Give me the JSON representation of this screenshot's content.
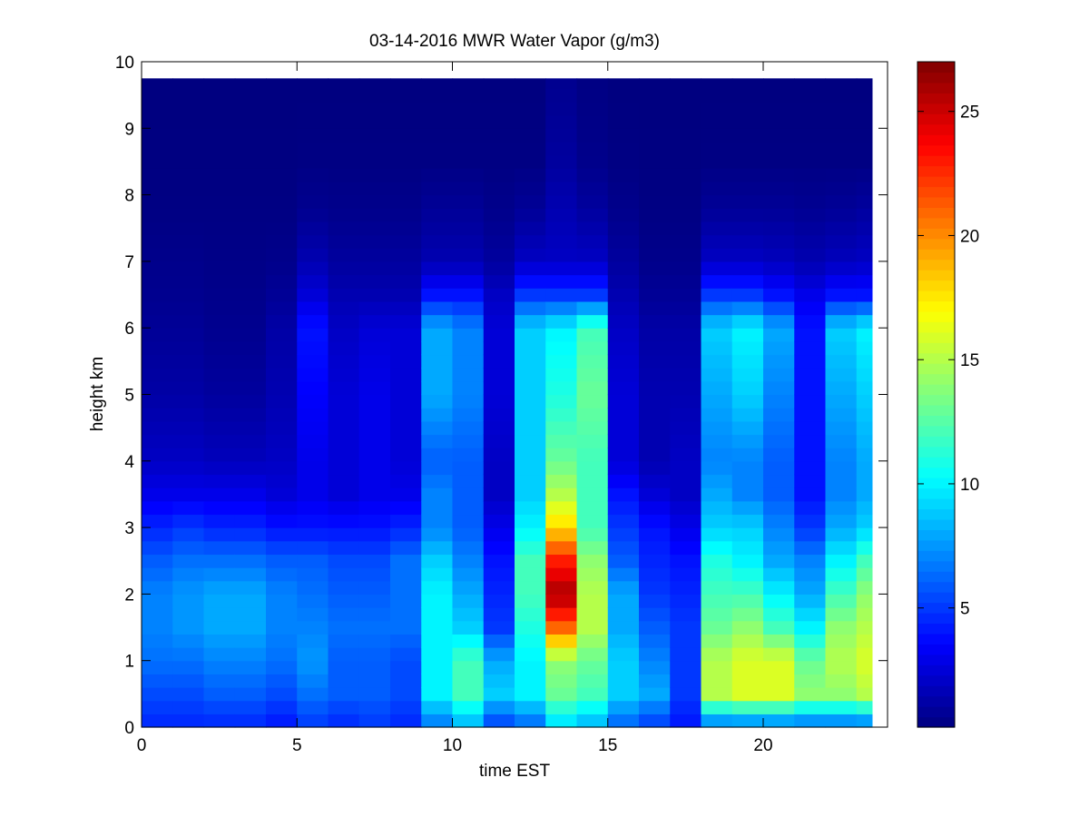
{
  "chart_data": {
    "type": "heatmap",
    "title": "03-14-2016 MWR Water Vapor (g/m3)",
    "xlabel": "time EST",
    "ylabel": "height km",
    "xlim": [
      0,
      24
    ],
    "ylim": [
      0,
      10
    ],
    "xticks": [
      0,
      5,
      10,
      15,
      20
    ],
    "yticks": [
      0,
      1,
      2,
      3,
      4,
      5,
      6,
      7,
      8,
      9,
      10
    ],
    "colormap": "jet",
    "clim": [
      0.2,
      27
    ],
    "colorbar_ticks": [
      5,
      10,
      15,
      20,
      25
    ],
    "grid": false,
    "time_columns": [
      0.5,
      1.5,
      2.5,
      3.5,
      4.5,
      5.5,
      6.5,
      7.5,
      8.5,
      9.5,
      10.5,
      11.5,
      12.5,
      13.5,
      14.5,
      15.5,
      16.5,
      17.5,
      18.5,
      19.5,
      20.5,
      21.5,
      22.5,
      23.5
    ],
    "height_profile_km": [
      0,
      0.5,
      1.0,
      1.5,
      2.0,
      2.5,
      3.0,
      3.5,
      4.0,
      5.0,
      6.0,
      6.5,
      7.0,
      7.8,
      8.5,
      9.75
    ],
    "values_g_m3": [
      [
        4.5,
        5.5,
        6.5,
        7,
        7,
        6,
        4.5,
        3,
        2,
        1.2,
        0.8,
        0.6,
        0.5,
        0.3,
        0.25,
        0.2
      ],
      [
        4.5,
        5.5,
        6.5,
        7.5,
        7.5,
        6.5,
        5,
        3,
        2,
        1.2,
        0.8,
        0.6,
        0.5,
        0.3,
        0.25,
        0.2
      ],
      [
        4.5,
        6,
        7,
        8,
        8,
        6.5,
        4.5,
        3,
        1.8,
        1,
        0.6,
        0.5,
        0.4,
        0.3,
        0.25,
        0.2
      ],
      [
        4.5,
        6,
        7,
        8,
        8,
        6.5,
        4.5,
        3,
        1.8,
        1,
        0.6,
        0.5,
        0.4,
        0.3,
        0.25,
        0.2
      ],
      [
        4,
        5.5,
        6.5,
        7,
        7,
        6,
        4,
        2.5,
        2,
        1.5,
        1.2,
        0.8,
        0.5,
        0.3,
        0.25,
        0.2
      ],
      [
        5,
        6.5,
        7.5,
        7,
        6.5,
        6,
        4,
        3,
        3,
        3.5,
        4,
        2.5,
        1.5,
        0.6,
        0.3,
        0.2
      ],
      [
        4.5,
        6,
        6,
        6.5,
        6,
        5.5,
        4,
        2.5,
        2.5,
        2.5,
        2,
        1.5,
        1,
        0.5,
        0.3,
        0.2
      ],
      [
        5,
        6,
        6,
        6.5,
        6,
        5.5,
        4,
        3,
        3,
        3,
        2.5,
        1.5,
        1,
        0.5,
        0.3,
        0.2
      ],
      [
        4.5,
        5.5,
        5.5,
        6.5,
        6.5,
        6.5,
        4.5,
        3,
        2.5,
        2.5,
        2.5,
        1.5,
        1,
        0.5,
        0.3,
        0.2
      ],
      [
        6.5,
        10,
        10,
        10,
        10,
        9,
        7,
        7,
        6,
        8,
        8,
        4,
        1.5,
        0.8,
        0.3,
        0.2
      ],
      [
        8,
        12,
        12,
        9,
        8,
        7,
        6,
        6,
        6,
        7,
        7,
        4,
        1.5,
        0.8,
        0.3,
        0.2
      ],
      [
        5,
        9,
        8,
        5,
        4.5,
        4,
        3,
        2,
        2,
        2.5,
        2.5,
        2,
        1,
        0.5,
        0.3,
        0.2
      ],
      [
        6,
        10,
        10,
        11,
        12,
        12,
        10,
        9,
        9,
        9,
        9,
        5,
        2,
        0.8,
        0.3,
        0.2
      ],
      [
        9,
        13,
        14,
        21,
        26,
        23,
        18,
        15,
        13,
        11,
        10,
        5,
        2,
        1.5,
        1,
        0.6
      ],
      [
        8,
        12,
        13,
        15,
        15,
        14,
        12,
        12,
        12,
        13,
        12,
        5,
        2,
        1,
        0.5,
        0.3
      ],
      [
        6,
        9,
        9,
        8,
        8,
        6,
        5,
        4,
        2.5,
        2.5,
        2,
        1.5,
        1,
        0.5,
        0.3,
        0.2
      ],
      [
        5,
        8,
        7,
        6,
        5,
        4.5,
        4,
        2.5,
        1.5,
        1.5,
        1.2,
        0.8,
        0.5,
        0.3,
        0.25,
        0.2
      ],
      [
        4,
        5,
        5,
        5,
        4.5,
        4,
        3,
        2,
        2,
        1.5,
        1.2,
        0.8,
        0.5,
        0.3,
        0.25,
        0.2
      ],
      [
        6,
        15,
        15,
        13,
        12,
        11,
        9,
        8,
        7,
        8,
        9,
        5,
        2,
        0.8,
        0.3,
        0.2
      ],
      [
        6,
        16,
        16,
        14,
        12,
        10,
        9,
        7,
        7,
        9,
        10,
        5,
        2,
        0.8,
        0.3,
        0.2
      ],
      [
        6,
        16,
        16,
        12,
        10,
        8,
        7,
        6,
        6,
        7,
        8,
        4,
        1.8,
        0.8,
        0.3,
        0.2
      ],
      [
        6,
        14,
        13,
        10,
        8,
        7,
        5,
        4,
        4,
        4,
        4,
        3,
        1.5,
        0.7,
        0.3,
        0.2
      ],
      [
        6,
        14,
        15,
        14,
        12,
        10,
        8,
        7,
        7,
        8,
        9,
        4,
        1.8,
        0.8,
        0.3,
        0.2
      ],
      [
        6,
        15,
        16,
        15,
        14,
        12,
        9,
        8,
        8,
        9,
        10,
        4,
        2,
        1,
        0.3,
        0.2
      ]
    ]
  }
}
